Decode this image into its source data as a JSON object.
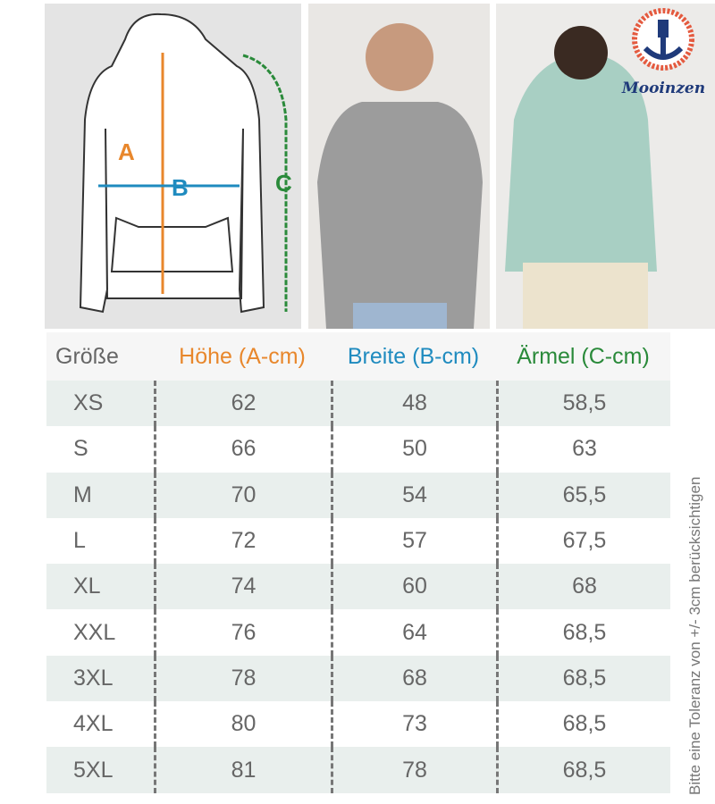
{
  "colors": {
    "height": "#e8872c",
    "width": "#1f8bbf",
    "sleeve": "#2a8a3a",
    "text": "#666666"
  },
  "diagram": {
    "label_a": "A",
    "label_b": "B",
    "label_c": "C"
  },
  "logo": {
    "text": "Mooinzen"
  },
  "table": {
    "headers": [
      "Größe",
      "Höhe (A-cm)",
      "Breite (B-cm)",
      "Ärmel (C-cm)"
    ],
    "rows": [
      [
        "XS",
        "62",
        "48",
        "58,5"
      ],
      [
        "S",
        "66",
        "50",
        "63"
      ],
      [
        "M",
        "70",
        "54",
        "65,5"
      ],
      [
        "L",
        "72",
        "57",
        "67,5"
      ],
      [
        "XL",
        "74",
        "60",
        "68"
      ],
      [
        "XXL",
        "76",
        "64",
        "68,5"
      ],
      [
        "3XL",
        "78",
        "68",
        "68,5"
      ],
      [
        "4XL",
        "80",
        "73",
        "68,5"
      ],
      [
        "5XL",
        "81",
        "78",
        "68,5"
      ]
    ]
  },
  "note": "Bitte eine Toleranz von +/- 3cm berücksichtigen"
}
